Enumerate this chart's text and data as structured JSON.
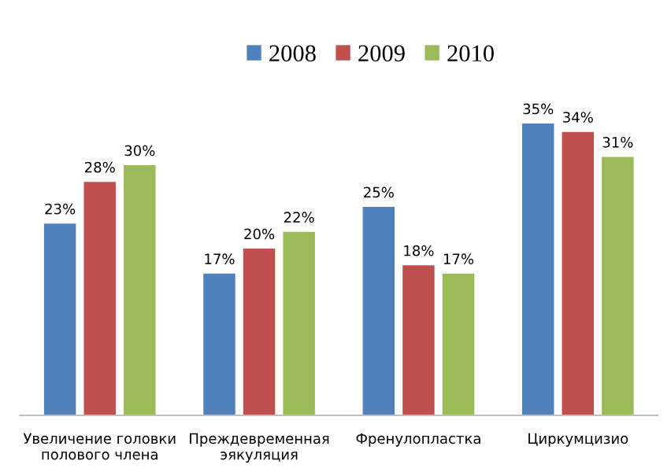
{
  "chart_data": {
    "type": "bar",
    "categories": [
      "Увеличение головки\nполового члена",
      "Преждевременная\nэякуляция",
      "Френулопластка",
      "Циркумцизио"
    ],
    "series": [
      {
        "name": "2008",
        "color": "#4f81bd",
        "values": [
          23,
          17,
          25,
          35
        ],
        "value_labels": [
          "23%",
          "17%",
          "25%",
          "35%"
        ]
      },
      {
        "name": "2009",
        "color": "#c0504d",
        "values": [
          28,
          20,
          18,
          34
        ],
        "value_labels": [
          "28%",
          "20%",
          "18%",
          "34%"
        ]
      },
      {
        "name": "2010",
        "color": "#9bbb59",
        "values": [
          30,
          22,
          17,
          31
        ],
        "value_labels": [
          "30%",
          "22%",
          "17%",
          "31%"
        ]
      }
    ],
    "grid": false,
    "legend": "top",
    "tick_labels": "x"
  }
}
